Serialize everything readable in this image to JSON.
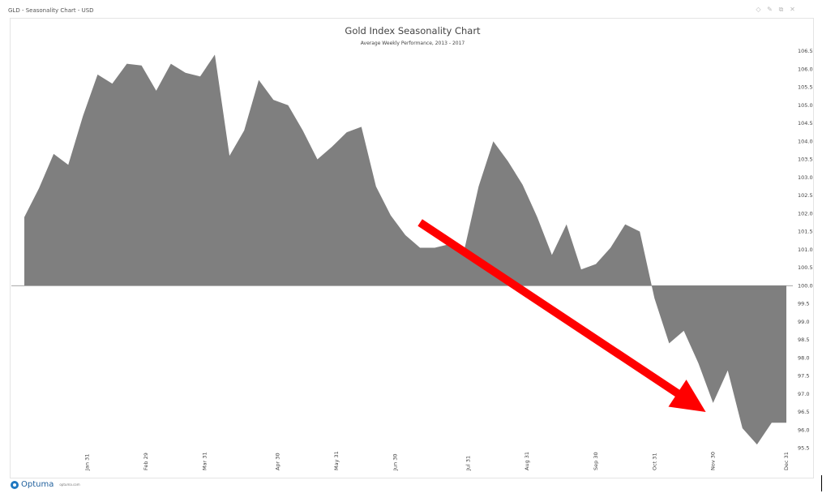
{
  "window": {
    "title": "GLD - Seasonality Chart - USD",
    "controls": [
      "◇",
      "✎",
      "⧉",
      "✕"
    ]
  },
  "footer": {
    "logo_text": "Optuma",
    "url": "optuma.com"
  },
  "colors": {
    "area": "#7f7f7f",
    "arrow": "#ff0000",
    "baseline": "#888888"
  },
  "chart_data": {
    "type": "area",
    "title": "Gold Index Seasonality Chart",
    "subtitle": "Average Weekly Performance, 2013 - 2017",
    "xlabel": "",
    "ylabel": "",
    "ylim": [
      95.2,
      106.9
    ],
    "baseline": 100.0,
    "grid": false,
    "y_axis_position": "right",
    "y_ticks": [
      "106.5",
      "106.0",
      "105.5",
      "105.0",
      "104.5",
      "104.0",
      "103.5",
      "103.0",
      "102.5",
      "102.0",
      "101.5",
      "101.0",
      "100.5",
      "100.0",
      "99.5",
      "99.0",
      "98.5",
      "98.0",
      "97.5",
      "97.0",
      "96.5",
      "96.0",
      "95.5"
    ],
    "x_tick_labels": [
      {
        "label": "Jan 31",
        "week": 4.3
      },
      {
        "label": "Feb 29",
        "week": 8.3
      },
      {
        "label": "Mar 31",
        "week": 12.3
      },
      {
        "label": "Apr 30",
        "week": 17.3
      },
      {
        "label": "May 31",
        "week": 21.3
      },
      {
        "label": "Jun 30",
        "week": 25.3
      },
      {
        "label": "Jul 31",
        "week": 30.3
      },
      {
        "label": "Aug 31",
        "week": 34.3
      },
      {
        "label": "Sep 30",
        "week": 39.0
      },
      {
        "label": "Oct 31",
        "week": 43.0
      },
      {
        "label": "Nov 30",
        "week": 47.0
      },
      {
        "label": "Dec 31",
        "week": 52.0
      }
    ],
    "series": [
      {
        "x": [
          0,
          1,
          2,
          3,
          4,
          5,
          6,
          7,
          8,
          9,
          10,
          11,
          12,
          13,
          14,
          15,
          16,
          17,
          18,
          19,
          20,
          21,
          22,
          23,
          24,
          25,
          26,
          27,
          28,
          29,
          30,
          31,
          32,
          33,
          34,
          35,
          36,
          37,
          38,
          39,
          40,
          41,
          42,
          43,
          44,
          45,
          46,
          47,
          48,
          49,
          50,
          51,
          52
        ],
        "values": [
          101.9,
          102.7,
          103.65,
          103.35,
          104.7,
          105.85,
          105.6,
          106.15,
          106.1,
          105.4,
          106.15,
          105.9,
          105.8,
          106.4,
          103.6,
          104.3,
          105.7,
          105.15,
          105.0,
          104.3,
          103.5,
          103.85,
          104.25,
          104.4,
          102.75,
          101.95,
          101.4,
          101.05,
          101.05,
          101.15,
          100.95,
          102.75,
          104.0,
          103.45,
          102.8,
          101.9,
          100.85,
          101.7,
          100.45,
          100.6,
          101.05,
          101.7,
          101.5,
          99.65,
          98.4,
          98.75,
          97.85,
          96.75,
          97.65,
          96.05,
          95.6,
          96.2,
          96.2
        ]
      }
    ],
    "annotation": {
      "type": "arrow",
      "from_week": 27.0,
      "from_value": 101.75,
      "to_week": 46.5,
      "to_value": 96.5
    }
  }
}
